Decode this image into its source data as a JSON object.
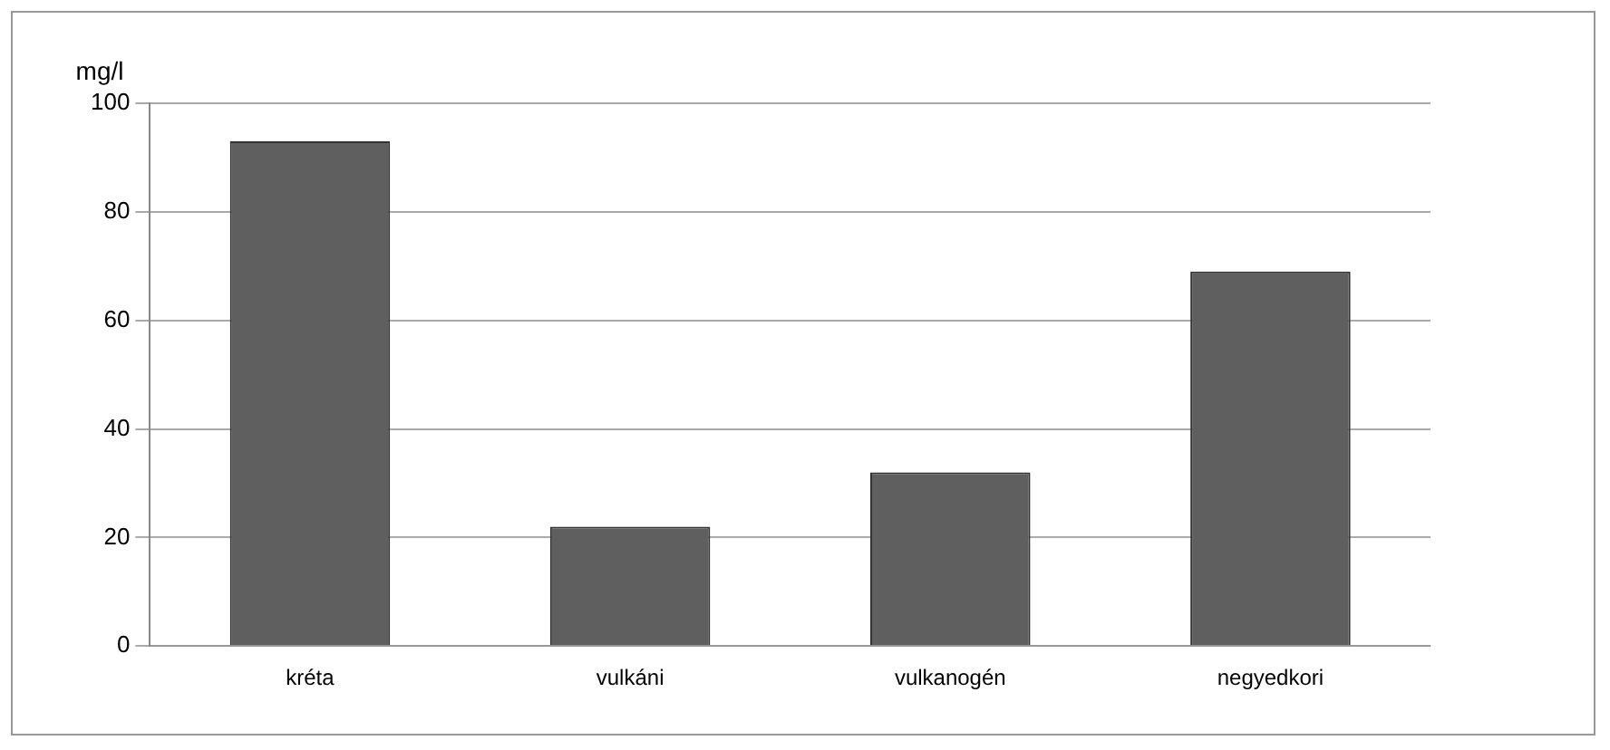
{
  "chart_data": {
    "type": "bar",
    "ylabel": "mg/l",
    "categories": [
      "kréta",
      "vulkáni",
      "vulkanogén",
      "negyedkori"
    ],
    "values": [
      93,
      22,
      32,
      69
    ],
    "color": "#5f5f5f",
    "ylim": [
      0,
      100
    ],
    "yticks": [
      0,
      20,
      40,
      60,
      80,
      100
    ],
    "grid": "y",
    "legend": false
  }
}
